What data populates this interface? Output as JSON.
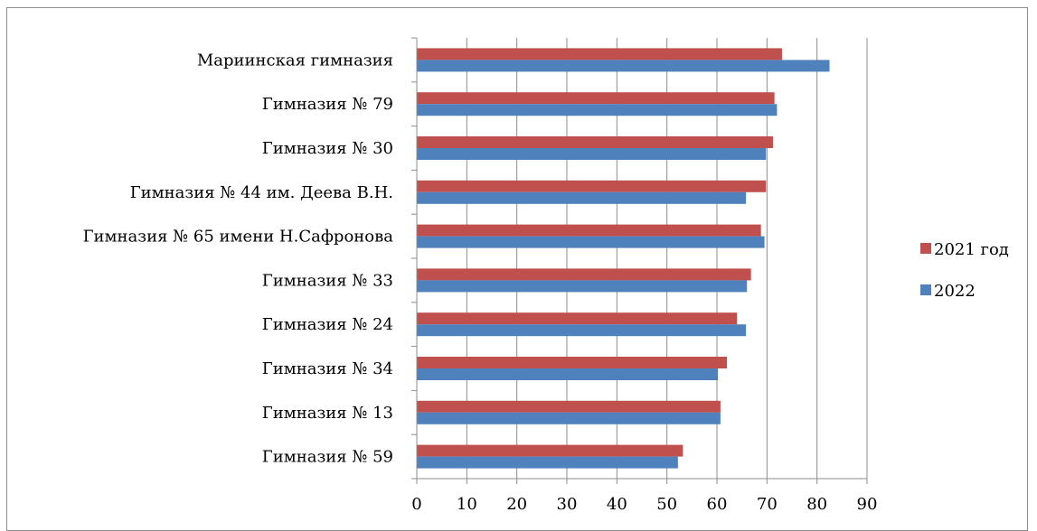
{
  "chart_data": {
    "type": "bar",
    "orientation": "horizontal",
    "categories": [
      "Мариинская гимназия",
      "Гимназия № 79",
      "Гимназия № 30",
      "Гимназия № 44 им. Деева В.Н.",
      "Гимназия № 65 имени Н.Сафронова",
      "Гимназия № 33",
      "Гимназия № 24",
      "Гимназия № 34",
      "Гимназия № 13",
      "Гимназия № 59"
    ],
    "series": [
      {
        "name": "2021 год",
        "color": "#c0504d",
        "values": [
          73,
          71.5,
          71.2,
          69.8,
          68.8,
          66.8,
          64,
          62,
          60.7,
          53.2
        ]
      },
      {
        "name": "2022",
        "color": "#4f81bd",
        "values": [
          82.5,
          72,
          69.8,
          65.8,
          69.5,
          66,
          65.8,
          60.2,
          60.7,
          52.2
        ]
      }
    ],
    "xlim": [
      0,
      90
    ],
    "xticks": [
      "0",
      "10",
      "20",
      "30",
      "40",
      "50",
      "60",
      "70",
      "80",
      "90"
    ],
    "grid": true,
    "legend_position": "right",
    "title": "",
    "xlabel": "",
    "ylabel": ""
  }
}
